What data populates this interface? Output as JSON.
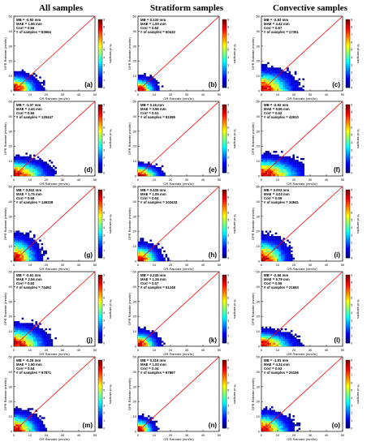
{
  "columns": [
    "All samples",
    "Stratiform samples",
    "Convective samples"
  ],
  "common": {
    "xlabel": "GR Rainrate (mm/hr)",
    "ylabel": "DPR Rainrate (mm/hr)",
    "colorbar_label": "% of samples",
    "xticks": [
      "0",
      "10",
      "20",
      "30",
      "40",
      "50"
    ],
    "yticks": [
      "0",
      "10",
      "20",
      "30",
      "40",
      "50"
    ],
    "cbar_ticks": [
      "0",
      "1",
      "2",
      "3",
      "4",
      "5",
      "6",
      "7",
      "8",
      "9"
    ],
    "one_to_one_color": "#ff0000"
  },
  "chart_data": [
    {
      "type": "heatmap",
      "panel": "(a)",
      "stats": [
        "MB = -0.50 mm",
        "MAE = 1.66 mm",
        "Corr = 0.66",
        "# of samples = 83664"
      ],
      "spread": [
        12,
        9
      ]
    },
    {
      "type": "heatmap",
      "panel": "(b)",
      "stats": [
        "MB = 0.130 mm",
        "MAE = 1.00 mm",
        "Corr = 0.62",
        "# of samples = 60432"
      ],
      "spread": [
        9,
        7
      ]
    },
    {
      "type": "heatmap",
      "panel": "(c)",
      "stats": [
        "MB = -2.83 mm",
        "MAE = 4.42 mm",
        "Corr = 0.67",
        "# of samples = 17351"
      ],
      "spread": [
        16,
        11
      ]
    },
    {
      "type": "heatmap",
      "panel": "(d)",
      "stats": [
        "MB = -1.07 mm",
        "MAE = 2.44 mm",
        "Corr = 0.66",
        "# of samples = 130447"
      ],
      "spread": [
        17,
        9
      ]
    },
    {
      "type": "heatmap",
      "panel": "(e)",
      "stats": [
        "MB = 0.16 mm",
        "MAE = 0.96 mm",
        "Corr = 0.51",
        "# of samples = 81095"
      ],
      "spread": [
        11,
        6
      ]
    },
    {
      "type": "heatmap",
      "panel": "(f)",
      "stats": [
        "MB = -2.92 mm",
        "MAE = 5.56 mm",
        "Corr = 0.62",
        "# of samples = 42910"
      ],
      "spread": [
        20,
        10
      ]
    },
    {
      "type": "heatmap",
      "panel": "(g)",
      "stats": [
        "MB = 0.302 mm",
        "MAE = 1.75 mm",
        "Corr = 0.66",
        "# of samples = 146328"
      ],
      "spread": [
        12,
        13
      ]
    },
    {
      "type": "heatmap",
      "panel": "(h)",
      "stats": [
        "MB = 0.435 mm",
        "MAE = 1.09 mm",
        "Corr = 0.64",
        "# of samples = 103433"
      ],
      "spread": [
        11,
        9
      ]
    },
    {
      "type": "heatmap",
      "panel": "(i)",
      "stats": [
        "MB = 0.003 mm",
        "MAE = 4.03 mm",
        "Corr = 0.59",
        "# of samples = 34941"
      ],
      "spread": [
        13,
        12
      ]
    },
    {
      "type": "heatmap",
      "panel": "(j)",
      "stats": [
        "MB = -0.61 mm",
        "MAE = 2.56 mm",
        "Corr = 0.60",
        "# of samples = 74462"
      ],
      "spread": [
        16,
        11
      ]
    },
    {
      "type": "heatmap",
      "panel": "(k)",
      "stats": [
        "MB = 0.240 mm",
        "MAE = 1.26 mm",
        "Corr = 0.57",
        "# of samples = 51248"
      ],
      "spread": [
        10,
        8
      ]
    },
    {
      "type": "heatmap",
      "panel": "(l)",
      "stats": [
        "MB = -2.66 mm",
        "MAE = 5.79 mm",
        "Corr = 0.56",
        "# of samples = 21693"
      ],
      "spread": [
        16,
        8
      ]
    },
    {
      "type": "heatmap",
      "panel": "(m)",
      "stats": [
        "MB = -0.29 mm",
        "MAE = 1.90 mm",
        "Corr = 0.54",
        "# of samples = 97871"
      ],
      "spread": [
        13,
        10
      ]
    },
    {
      "type": "heatmap",
      "panel": "(n)",
      "stats": [
        "MB = 0.316 mm",
        "MAE = 1.00 mm",
        "Corr = 0.34",
        "# of samples = 67867"
      ],
      "spread": [
        8,
        7
      ]
    },
    {
      "type": "heatmap",
      "panel": "(o)",
      "stats": [
        "MB = -1.91 mm",
        "MAE = 4.34 mm",
        "Corr = 0.53",
        "# of samples = 26156"
      ],
      "spread": [
        14,
        10
      ]
    }
  ]
}
